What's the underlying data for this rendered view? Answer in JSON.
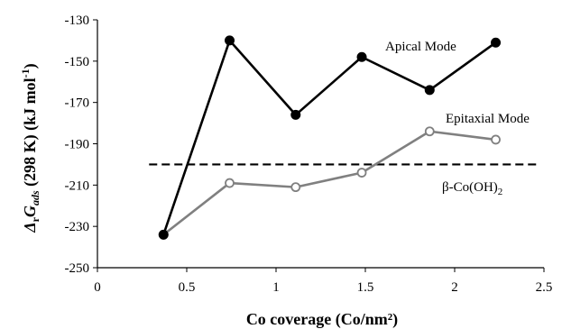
{
  "chart_data": {
    "type": "line",
    "xlabel": "Co coverage (Co/nm²)",
    "ylabel": {
      "delta": "Δ",
      "r": "r",
      "G": "G",
      "ads": "ads",
      "rest": " (298 K) (kJ mol",
      "sup": "-1",
      "close": ")"
    },
    "xlim": [
      0,
      2.5
    ],
    "ylim": [
      -250,
      -130
    ],
    "xticks": [
      0,
      0.5,
      1,
      1.5,
      2,
      2.5
    ],
    "xtick_labels": [
      "0",
      "0.5",
      "1",
      "1.5",
      "2",
      "2.5"
    ],
    "yticks": [
      -130,
      -150,
      -170,
      -190,
      -210,
      -230,
      -250
    ],
    "ytick_labels": [
      "-130",
      "-150",
      "-170",
      "-190",
      "-210",
      "-230",
      "-250"
    ],
    "grid": false,
    "series": [
      {
        "name": "Apical Mode",
        "color": "#000000",
        "marker": "filled-circle",
        "points": [
          {
            "x": 0.37,
            "y": -234
          },
          {
            "x": 0.74,
            "y": -140
          },
          {
            "x": 1.11,
            "y": -176
          },
          {
            "x": 1.48,
            "y": -148
          },
          {
            "x": 1.86,
            "y": -164
          },
          {
            "x": 2.23,
            "y": -141
          }
        ]
      },
      {
        "name": "Epitaxial Mode",
        "color": "#808080",
        "marker": "open-circle",
        "points": [
          {
            "x": 0.37,
            "y": -234
          },
          {
            "x": 0.74,
            "y": -209
          },
          {
            "x": 1.11,
            "y": -211
          },
          {
            "x": 1.48,
            "y": -204
          },
          {
            "x": 1.86,
            "y": -184
          },
          {
            "x": 2.23,
            "y": -188
          }
        ]
      }
    ],
    "reference_line": {
      "name": "β-Co(OH)",
      "subscript": "2",
      "y": -200,
      "style": "dashed",
      "color": "#000000"
    }
  }
}
